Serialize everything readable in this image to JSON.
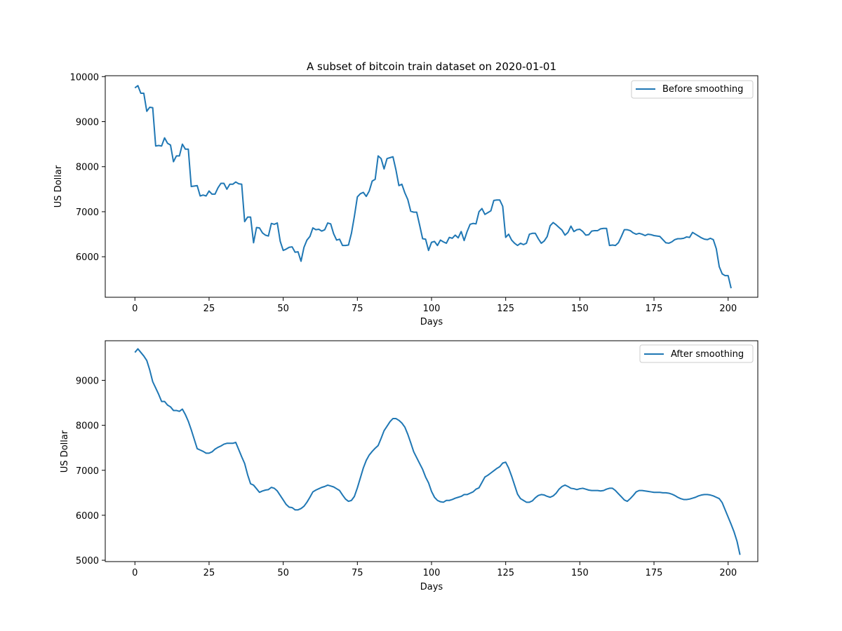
{
  "figure_title": "A subset of bitcoin train dataset on 2020-01-01",
  "chart_data": [
    {
      "type": "line",
      "title": "A subset of bitcoin train dataset on 2020-01-01",
      "xlabel": "Days",
      "ylabel": "US Dollar",
      "xlim": [
        -10,
        210
      ],
      "ylim": [
        5100,
        10020
      ],
      "xticks": [
        0,
        25,
        50,
        75,
        100,
        125,
        150,
        175,
        200
      ],
      "yticks": [
        6000,
        7000,
        8000,
        9000,
        10000
      ],
      "grid": false,
      "legend": "top-right",
      "series": [
        {
          "name": "Before smoothing",
          "color": "#1f77b4",
          "x_start": 0,
          "x_step": 1,
          "values": [
            9750,
            9800,
            9630,
            9630,
            9230,
            9320,
            9310,
            8460,
            8470,
            8460,
            8640,
            8520,
            8480,
            8110,
            8240,
            8240,
            8500,
            8390,
            8390,
            7560,
            7570,
            7580,
            7350,
            7370,
            7350,
            7460,
            7390,
            7390,
            7530,
            7630,
            7630,
            7500,
            7610,
            7610,
            7660,
            7620,
            7610,
            6780,
            6880,
            6880,
            6310,
            6650,
            6640,
            6530,
            6480,
            6460,
            6740,
            6720,
            6750,
            6340,
            6140,
            6170,
            6210,
            6220,
            6100,
            6110,
            5900,
            6210,
            6370,
            6450,
            6640,
            6600,
            6610,
            6570,
            6600,
            6750,
            6730,
            6510,
            6370,
            6390,
            6250,
            6250,
            6260,
            6520,
            6900,
            7330,
            7400,
            7430,
            7340,
            7460,
            7680,
            7720,
            8240,
            8180,
            7950,
            8180,
            8200,
            8220,
            7930,
            7580,
            7610,
            7420,
            7270,
            7010,
            6990,
            6990,
            6700,
            6400,
            6390,
            6140,
            6320,
            6340,
            6250,
            6370,
            6330,
            6300,
            6430,
            6410,
            6480,
            6420,
            6560,
            6360,
            6560,
            6720,
            6740,
            6730,
            7000,
            7070,
            6940,
            6980,
            7020,
            7250,
            7260,
            7260,
            7120,
            6430,
            6500,
            6370,
            6300,
            6250,
            6300,
            6270,
            6300,
            6500,
            6520,
            6520,
            6400,
            6300,
            6350,
            6450,
            6690,
            6760,
            6710,
            6650,
            6590,
            6480,
            6540,
            6680,
            6560,
            6600,
            6610,
            6560,
            6480,
            6490,
            6570,
            6580,
            6580,
            6620,
            6630,
            6630,
            6250,
            6260,
            6250,
            6310,
            6450,
            6600,
            6600,
            6580,
            6530,
            6500,
            6520,
            6500,
            6470,
            6500,
            6490,
            6470,
            6460,
            6450,
            6380,
            6310,
            6300,
            6330,
            6380,
            6400,
            6400,
            6410,
            6440,
            6430,
            6540,
            6500,
            6460,
            6420,
            6390,
            6380,
            6410,
            6380,
            6180,
            5780,
            5620,
            5580,
            5580,
            5300
          ]
        }
      ]
    },
    {
      "type": "line",
      "title": "",
      "xlabel": "Days",
      "ylabel": "US Dollar",
      "xlim": [
        -10,
        210
      ],
      "ylim": [
        4970,
        9880
      ],
      "xticks": [
        0,
        25,
        50,
        75,
        100,
        125,
        150,
        175,
        200
      ],
      "yticks": [
        5000,
        6000,
        7000,
        8000,
        9000
      ],
      "grid": false,
      "legend": "top-right",
      "series": [
        {
          "name": "After smoothing",
          "color": "#1f77b4",
          "x_start": 0,
          "x_step": 1,
          "values": [
            9620,
            9700,
            9620,
            9540,
            9440,
            9230,
            8970,
            8830,
            8690,
            8530,
            8530,
            8450,
            8410,
            8330,
            8330,
            8310,
            8360,
            8240,
            8090,
            7900,
            7690,
            7480,
            7450,
            7420,
            7380,
            7380,
            7410,
            7470,
            7510,
            7540,
            7580,
            7600,
            7600,
            7600,
            7620,
            7460,
            7300,
            7150,
            6900,
            6700,
            6670,
            6590,
            6510,
            6540,
            6560,
            6570,
            6620,
            6600,
            6540,
            6440,
            6340,
            6240,
            6180,
            6170,
            6120,
            6120,
            6150,
            6200,
            6290,
            6400,
            6520,
            6560,
            6590,
            6620,
            6640,
            6670,
            6650,
            6630,
            6590,
            6550,
            6450,
            6360,
            6310,
            6330,
            6420,
            6610,
            6830,
            7050,
            7220,
            7340,
            7420,
            7490,
            7550,
            7710,
            7880,
            7980,
            8080,
            8150,
            8150,
            8110,
            8050,
            7960,
            7800,
            7610,
            7410,
            7280,
            7150,
            7020,
            6850,
            6720,
            6530,
            6400,
            6330,
            6300,
            6290,
            6330,
            6330,
            6350,
            6380,
            6400,
            6420,
            6460,
            6460,
            6490,
            6520,
            6580,
            6610,
            6730,
            6850,
            6890,
            6940,
            6990,
            7040,
            7080,
            7160,
            7180,
            7050,
            6870,
            6670,
            6470,
            6370,
            6330,
            6290,
            6290,
            6320,
            6390,
            6440,
            6460,
            6450,
            6420,
            6400,
            6430,
            6490,
            6580,
            6640,
            6670,
            6640,
            6600,
            6590,
            6570,
            6590,
            6600,
            6580,
            6560,
            6550,
            6550,
            6550,
            6540,
            6550,
            6580,
            6600,
            6600,
            6550,
            6480,
            6410,
            6340,
            6310,
            6370,
            6440,
            6520,
            6550,
            6550,
            6540,
            6530,
            6520,
            6510,
            6510,
            6510,
            6500,
            6500,
            6490,
            6470,
            6440,
            6400,
            6370,
            6350,
            6350,
            6360,
            6380,
            6400,
            6430,
            6450,
            6460,
            6460,
            6450,
            6430,
            6400,
            6370,
            6280,
            6120,
            5960,
            5800,
            5630,
            5420,
            5120
          ]
        }
      ]
    }
  ]
}
